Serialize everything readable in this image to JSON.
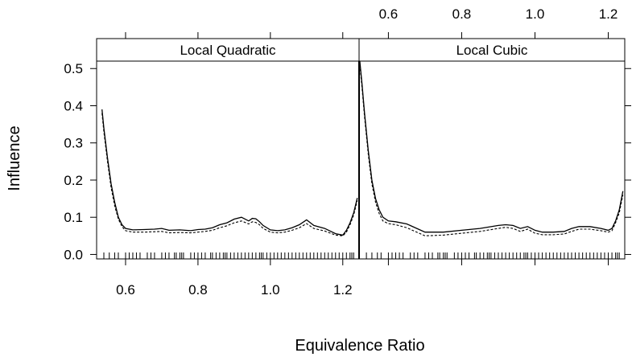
{
  "chart_data": {
    "type": "line",
    "xlabel": "Equivalence Ratio",
    "ylabel": "Influence",
    "xlim": [
      0.52,
      1.245
    ],
    "ylim": [
      -0.012,
      0.52
    ],
    "x_ticks": [
      0.6,
      0.8,
      1.0,
      1.2
    ],
    "x_tick_labels": [
      "0.6",
      "0.8",
      "1.0",
      "1.2"
    ],
    "y_ticks": [
      0.0,
      0.1,
      0.2,
      0.3,
      0.4,
      0.5
    ],
    "y_tick_labels": [
      "0.0",
      "0.1",
      "0.2",
      "0.3",
      "0.4",
      "0.5"
    ],
    "panels": [
      {
        "title": "Local Quadratic",
        "series": [
          {
            "style": "solid",
            "x": [
              0.535,
              0.54,
              0.55,
              0.56,
              0.57,
              0.58,
              0.59,
              0.6,
              0.62,
              0.65,
              0.68,
              0.7,
              0.72,
              0.75,
              0.78,
              0.8,
              0.82,
              0.84,
              0.86,
              0.88,
              0.9,
              0.92,
              0.94,
              0.95,
              0.96,
              0.97,
              0.98,
              1.0,
              1.02,
              1.04,
              1.06,
              1.08,
              1.1,
              1.12,
              1.15,
              1.18,
              1.2,
              1.21,
              1.22,
              1.23,
              1.24
            ],
            "y": [
              0.39,
              0.34,
              0.26,
              0.19,
              0.14,
              0.1,
              0.08,
              0.07,
              0.066,
              0.067,
              0.068,
              0.07,
              0.065,
              0.066,
              0.064,
              0.067,
              0.068,
              0.072,
              0.08,
              0.085,
              0.095,
              0.1,
              0.09,
              0.097,
              0.096,
              0.088,
              0.078,
              0.066,
              0.064,
              0.066,
              0.072,
              0.08,
              0.093,
              0.078,
              0.07,
              0.056,
              0.052,
              0.065,
              0.085,
              0.112,
              0.152
            ]
          },
          {
            "style": "dashed",
            "x": [
              0.535,
              0.54,
              0.55,
              0.56,
              0.57,
              0.58,
              0.59,
              0.6,
              0.62,
              0.65,
              0.68,
              0.7,
              0.72,
              0.75,
              0.78,
              0.8,
              0.82,
              0.84,
              0.86,
              0.88,
              0.9,
              0.92,
              0.94,
              0.95,
              0.96,
              0.97,
              0.98,
              1.0,
              1.02,
              1.04,
              1.06,
              1.08,
              1.1,
              1.12,
              1.15,
              1.18,
              1.2,
              1.21,
              1.22,
              1.23,
              1.24
            ],
            "y": [
              0.38,
              0.33,
              0.25,
              0.18,
              0.13,
              0.095,
              0.075,
              0.064,
              0.06,
              0.06,
              0.061,
              0.062,
              0.058,
              0.059,
              0.058,
              0.06,
              0.062,
              0.065,
              0.072,
              0.077,
              0.085,
              0.09,
              0.082,
              0.088,
              0.086,
              0.08,
              0.07,
              0.06,
              0.058,
              0.06,
              0.065,
              0.072,
              0.083,
              0.07,
              0.063,
              0.052,
              0.05,
              0.06,
              0.08,
              0.106,
              0.145
            ]
          }
        ]
      },
      {
        "title": "Local Cubic",
        "series": [
          {
            "style": "solid",
            "x": [
              0.522,
              0.528,
              0.535,
              0.545,
              0.555,
              0.565,
              0.575,
              0.585,
              0.6,
              0.62,
              0.65,
              0.7,
              0.75,
              0.8,
              0.85,
              0.9,
              0.92,
              0.94,
              0.96,
              0.98,
              1.0,
              1.02,
              1.05,
              1.08,
              1.1,
              1.12,
              1.15,
              1.18,
              1.2,
              1.21,
              1.22,
              1.23,
              1.24
            ],
            "y": [
              0.52,
              0.46,
              0.38,
              0.28,
              0.2,
              0.15,
              0.12,
              0.1,
              0.09,
              0.088,
              0.082,
              0.06,
              0.06,
              0.065,
              0.07,
              0.078,
              0.08,
              0.078,
              0.07,
              0.075,
              0.065,
              0.06,
              0.06,
              0.062,
              0.07,
              0.075,
              0.075,
              0.07,
              0.065,
              0.07,
              0.09,
              0.12,
              0.17
            ]
          },
          {
            "style": "dashed",
            "x": [
              0.522,
              0.528,
              0.535,
              0.545,
              0.555,
              0.565,
              0.575,
              0.585,
              0.6,
              0.62,
              0.65,
              0.7,
              0.75,
              0.8,
              0.85,
              0.9,
              0.92,
              0.94,
              0.96,
              0.98,
              1.0,
              1.02,
              1.05,
              1.08,
              1.1,
              1.12,
              1.15,
              1.18,
              1.2,
              1.21,
              1.22,
              1.23,
              1.24
            ],
            "y": [
              0.51,
              0.45,
              0.37,
              0.27,
              0.19,
              0.14,
              0.11,
              0.09,
              0.083,
              0.08,
              0.072,
              0.05,
              0.052,
              0.057,
              0.062,
              0.07,
              0.073,
              0.07,
              0.062,
              0.068,
              0.057,
              0.053,
              0.053,
              0.055,
              0.062,
              0.068,
              0.068,
              0.064,
              0.06,
              0.064,
              0.085,
              0.112,
              0.16
            ]
          }
        ]
      }
    ],
    "rug": [
      0.54,
      0.555,
      0.57,
      0.58,
      0.6,
      0.61,
      0.62,
      0.63,
      0.64,
      0.66,
      0.67,
      0.68,
      0.7,
      0.71,
      0.72,
      0.735,
      0.74,
      0.75,
      0.755,
      0.76,
      0.78,
      0.79,
      0.8,
      0.81,
      0.82,
      0.835,
      0.84,
      0.85,
      0.86,
      0.87,
      0.875,
      0.88,
      0.89,
      0.9,
      0.91,
      0.92,
      0.93,
      0.94,
      0.95,
      0.96,
      0.97,
      0.975,
      0.98,
      0.99,
      1.0,
      1.01,
      1.02,
      1.03,
      1.04,
      1.05,
      1.06,
      1.07,
      1.08,
      1.09,
      1.1,
      1.11,
      1.12,
      1.13,
      1.14,
      1.15,
      1.16,
      1.17,
      1.18,
      1.19,
      1.2,
      1.21,
      1.22,
      1.225,
      1.23
    ],
    "grid": false,
    "legend": "none"
  }
}
